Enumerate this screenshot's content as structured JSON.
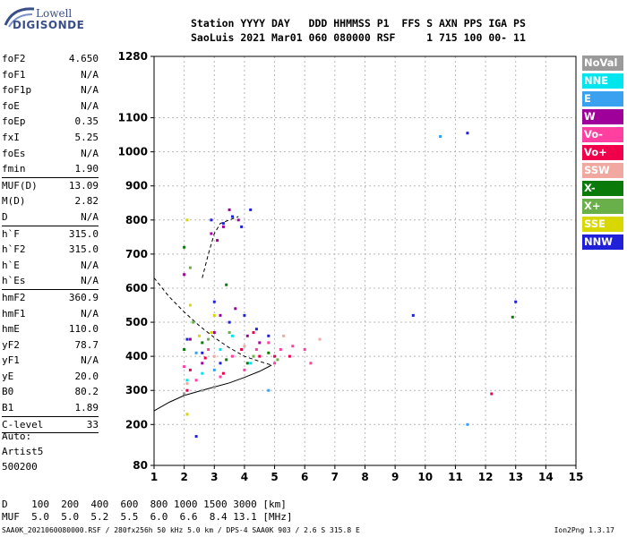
{
  "logo": {
    "line1": "Lowell",
    "line2": "DIGISONDE"
  },
  "header": {
    "row1": "Station YYYY DAY   DDD HHMMSS P1  FFS S AXN PPS IGA PS",
    "row2": "SaoLuis 2021 Mar01 060 080000 RSF     1 715 100 00- 11"
  },
  "params": [
    {
      "name": "foF2",
      "value": "4.650"
    },
    {
      "name": "foF1",
      "value": "N/A"
    },
    {
      "name": "foF1p",
      "value": "N/A"
    },
    {
      "name": "foE",
      "value": "N/A"
    },
    {
      "name": "foEp",
      "value": "0.35"
    },
    {
      "name": "fxI",
      "value": "5.25"
    },
    {
      "name": "foEs",
      "value": "N/A"
    },
    {
      "name": "fmin",
      "value": "1.90",
      "sep": true
    },
    {
      "name": "MUF(D)",
      "value": "13.09"
    },
    {
      "name": "M(D)",
      "value": "2.82"
    },
    {
      "name": "D",
      "value": "N/A",
      "sep": true
    },
    {
      "name": "h`F",
      "value": "315.0"
    },
    {
      "name": "h`F2",
      "value": "315.0"
    },
    {
      "name": "h`E",
      "value": "N/A"
    },
    {
      "name": "h`Es",
      "value": "N/A",
      "sep": true
    },
    {
      "name": "hmF2",
      "value": "360.9"
    },
    {
      "name": "hmF1",
      "value": "N/A"
    },
    {
      "name": "hmE",
      "value": "110.0"
    },
    {
      "name": "yF2",
      "value": "78.7"
    },
    {
      "name": "yF1",
      "value": "N/A"
    },
    {
      "name": "yE",
      "value": "20.0"
    },
    {
      "name": "B0",
      "value": "80.2"
    },
    {
      "name": "B1",
      "value": "1.89",
      "sep": true
    },
    {
      "name": "C-level",
      "value": "33",
      "sep": true
    }
  ],
  "auto": {
    "line1": "Auto:",
    "line2": "Artist5",
    "line3": "500200"
  },
  "legend": [
    {
      "label": "NoVal",
      "color": "#9a9a9a"
    },
    {
      "label": "NNE",
      "color": "#00e5ee"
    },
    {
      "label": "E",
      "color": "#3aa0f0"
    },
    {
      "label": "W",
      "color": "#a0009a"
    },
    {
      "label": "Vo-",
      "color": "#ff40a0"
    },
    {
      "label": "Vo+",
      "color": "#f0004a"
    },
    {
      "label": "SSW",
      "color": "#f0a8a0"
    },
    {
      "label": "X-",
      "color": "#0a7a0a"
    },
    {
      "label": "X+",
      "color": "#6ab04a"
    },
    {
      "label": "SSE",
      "color": "#d8d800"
    },
    {
      "label": "NNW",
      "color": "#2020d8"
    }
  ],
  "bottom": {
    "d_row": "D    100  200  400  600  800 1000 1500 3000 [km]",
    "muf_row": "MUF  5.0  5.0  5.2  5.5  6.0  6.6  8.4 13.1 [MHz]"
  },
  "footer": {
    "left": "SAA0K_2021060080000.RSF / 280fx256h 50 kHz 5.0 km / DPS-4 SAA0K 903 / 2.6 S 315.8 E",
    "right": "Ion2Png 1.3.17"
  },
  "chart_data": {
    "type": "scatter",
    "xlim": [
      1,
      15
    ],
    "ylim": [
      80,
      1280
    ],
    "x_ticks": [
      1,
      2,
      3,
      4,
      5,
      6,
      7,
      8,
      9,
      10,
      11,
      12,
      13,
      14,
      15
    ],
    "y_ticks": [
      80,
      200,
      300,
      400,
      500,
      600,
      700,
      800,
      900,
      1000,
      1100,
      1280
    ],
    "grid": true,
    "series": [
      {
        "name": "NoVal",
        "color": "#9a9a9a",
        "points": [
          [
            2.0,
            290
          ],
          [
            2.1,
            230
          ],
          [
            2.6,
            300
          ],
          [
            3.0,
            310
          ]
        ]
      },
      {
        "name": "NNE",
        "color": "#00e5ee",
        "points": [
          [
            2.1,
            330
          ],
          [
            2.6,
            350
          ],
          [
            3.2,
            420
          ],
          [
            3.6,
            460
          ],
          [
            4.2,
            380
          ]
        ]
      },
      {
        "name": "E",
        "color": "#3aa0f0",
        "points": [
          [
            10.5,
            1045
          ],
          [
            11.4,
            200
          ],
          [
            4.8,
            300
          ],
          [
            3.0,
            360
          ],
          [
            2.4,
            410
          ]
        ]
      },
      {
        "name": "W",
        "color": "#a0009a",
        "points": [
          [
            2.0,
            640
          ],
          [
            2.2,
            450
          ],
          [
            2.9,
            760
          ],
          [
            3.1,
            740
          ],
          [
            3.3,
            780
          ],
          [
            3.5,
            830
          ],
          [
            3.8,
            800
          ],
          [
            3.2,
            520
          ],
          [
            3.7,
            540
          ],
          [
            4.1,
            460
          ],
          [
            4.5,
            440
          ],
          [
            2.6,
            380
          ],
          [
            3.0,
            470
          ]
        ]
      },
      {
        "name": "Vo-",
        "color": "#ff40a0",
        "points": [
          [
            2.0,
            370
          ],
          [
            2.4,
            330
          ],
          [
            2.8,
            420
          ],
          [
            3.2,
            340
          ],
          [
            3.6,
            400
          ],
          [
            4.0,
            360
          ],
          [
            4.4,
            420
          ],
          [
            4.8,
            440
          ],
          [
            5.2,
            420
          ],
          [
            5.6,
            430
          ],
          [
            6.0,
            420
          ],
          [
            6.2,
            380
          ],
          [
            5.0,
            380
          ]
        ]
      },
      {
        "name": "Vo+",
        "color": "#f0004a",
        "points": [
          [
            2.2,
            360
          ],
          [
            2.7,
            395
          ],
          [
            3.3,
            350
          ],
          [
            3.9,
            420
          ],
          [
            4.5,
            400
          ],
          [
            5.0,
            400
          ],
          [
            5.5,
            400
          ],
          [
            12.2,
            290
          ],
          [
            4.3,
            470
          ],
          [
            2.1,
            300
          ]
        ]
      },
      {
        "name": "SSW",
        "color": "#f0a8a0",
        "points": [
          [
            2.1,
            320
          ],
          [
            3.0,
            400
          ],
          [
            4.0,
            430
          ],
          [
            5.3,
            460
          ],
          [
            6.5,
            450
          ]
        ]
      },
      {
        "name": "X-",
        "color": "#0a7a0a",
        "points": [
          [
            2.0,
            720
          ],
          [
            2.0,
            420
          ],
          [
            2.6,
            440
          ],
          [
            3.4,
            390
          ],
          [
            4.1,
            380
          ],
          [
            4.8,
            410
          ],
          [
            12.9,
            515
          ],
          [
            3.4,
            610
          ]
        ]
      },
      {
        "name": "X+",
        "color": "#6ab04a",
        "points": [
          [
            2.2,
            660
          ],
          [
            2.8,
            450
          ],
          [
            3.5,
            470
          ],
          [
            4.3,
            400
          ],
          [
            5.1,
            390
          ],
          [
            2.3,
            500
          ]
        ]
      },
      {
        "name": "SSE",
        "color": "#d8d800",
        "points": [
          [
            2.1,
            800
          ],
          [
            2.2,
            550
          ],
          [
            2.9,
            470
          ],
          [
            3.0,
            520
          ],
          [
            2.1,
            230
          ],
          [
            2.5,
            460
          ]
        ]
      },
      {
        "name": "NNW",
        "color": "#2020d8",
        "points": [
          [
            2.4,
            165
          ],
          [
            2.1,
            450
          ],
          [
            2.9,
            800
          ],
          [
            3.3,
            790
          ],
          [
            3.6,
            810
          ],
          [
            3.9,
            780
          ],
          [
            4.2,
            830
          ],
          [
            3.0,
            560
          ],
          [
            3.5,
            500
          ],
          [
            4.0,
            520
          ],
          [
            4.4,
            480
          ],
          [
            4.8,
            460
          ],
          [
            9.6,
            520
          ],
          [
            11.4,
            1055
          ],
          [
            13.0,
            560
          ],
          [
            2.6,
            410
          ],
          [
            3.2,
            380
          ]
        ]
      }
    ],
    "lines": [
      {
        "style": "solid",
        "points": [
          [
            1.0,
            240
          ],
          [
            1.5,
            265
          ],
          [
            2.0,
            285
          ],
          [
            2.5,
            298
          ],
          [
            3.0,
            310
          ],
          [
            3.5,
            322
          ],
          [
            4.0,
            338
          ],
          [
            4.5,
            356
          ],
          [
            4.9,
            374
          ]
        ]
      },
      {
        "style": "dashed",
        "points": [
          [
            1.0,
            630
          ],
          [
            1.5,
            575
          ],
          [
            2.0,
            530
          ],
          [
            2.5,
            490
          ],
          [
            3.0,
            455
          ],
          [
            3.5,
            425
          ],
          [
            4.0,
            400
          ],
          [
            4.5,
            385
          ],
          [
            4.9,
            374
          ]
        ]
      },
      {
        "style": "dashed",
        "points": [
          [
            2.6,
            630
          ],
          [
            2.8,
            700
          ],
          [
            3.0,
            760
          ],
          [
            3.2,
            790
          ],
          [
            3.5,
            800
          ],
          [
            3.8,
            810
          ]
        ]
      }
    ]
  }
}
